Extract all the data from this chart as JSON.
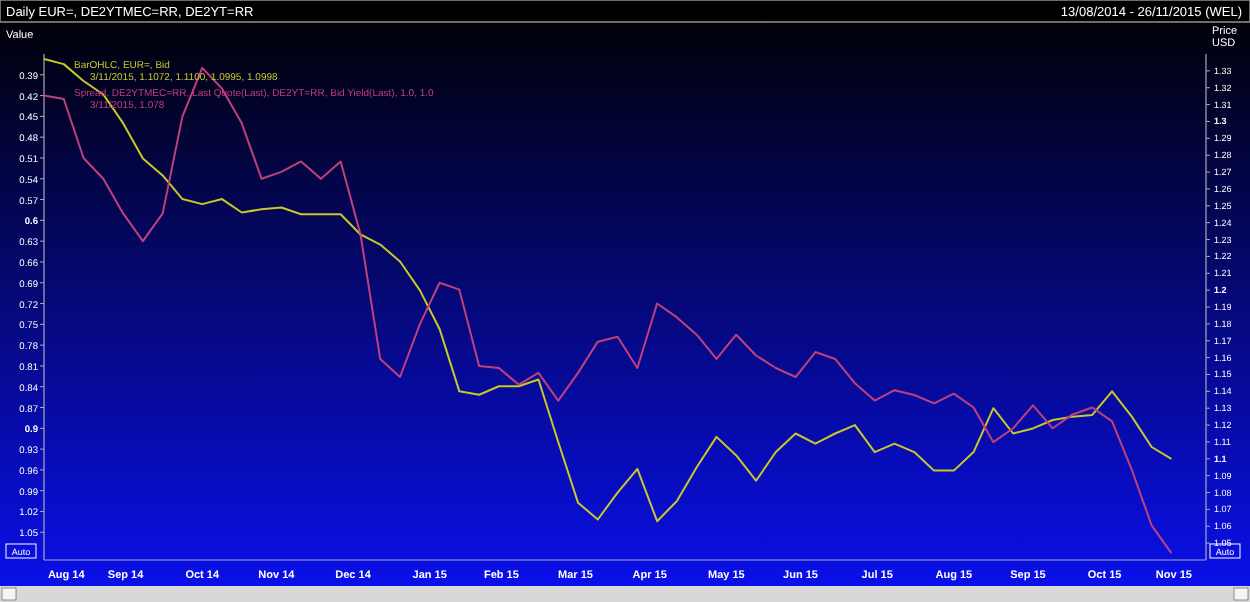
{
  "chart_data": {
    "type": "line",
    "title": "Daily EUR=, DE2YTMEC=RR, DE2YT=RR",
    "subtitle": "13/08/2014 - 26/11/2015 (WEL)",
    "ylabel": "Value",
    "y2label": "Price USD",
    "annotations": [
      "3/11/2015, 1.1072, 1.1100, 1.0995, 1.0998",
      "3/11/2015, 1.078",
      "Auto",
      "Auto"
    ],
    "x": [
      "2014-08-13",
      "2014-08-21",
      "2014-08-29",
      "2014-09-06",
      "2014-09-14",
      "2014-09-22",
      "2014-09-30",
      "2014-10-08",
      "2014-10-16",
      "2014-10-24",
      "2014-11-01",
      "2014-11-09",
      "2014-11-17",
      "2014-11-25",
      "2014-12-03",
      "2014-12-11",
      "2014-12-19",
      "2014-12-27",
      "2015-01-04",
      "2015-01-12",
      "2015-01-20",
      "2015-01-28",
      "2015-02-05",
      "2015-02-13",
      "2015-02-21",
      "2015-03-01",
      "2015-03-09",
      "2015-03-17",
      "2015-03-25",
      "2015-04-02",
      "2015-04-10",
      "2015-04-18",
      "2015-04-26",
      "2015-05-04",
      "2015-05-12",
      "2015-05-20",
      "2015-05-28",
      "2015-06-05",
      "2015-06-13",
      "2015-06-21",
      "2015-06-29",
      "2015-07-07",
      "2015-07-15",
      "2015-07-23",
      "2015-07-31",
      "2015-08-08",
      "2015-08-16",
      "2015-08-24",
      "2015-09-01",
      "2015-09-09",
      "2015-09-17",
      "2015-09-25",
      "2015-10-03",
      "2015-10-11",
      "2015-10-19",
      "2015-10-27",
      "2015-11-04",
      "2015-11-12"
    ],
    "series": [
      {
        "name": "BarOHLC, EUR=, Bid",
        "color": "#c8c828",
        "axis": "y2",
        "values": [
          1.337,
          1.334,
          1.324,
          1.316,
          1.299,
          1.278,
          1.268,
          1.254,
          1.251,
          1.254,
          1.246,
          1.248,
          1.249,
          1.245,
          1.245,
          1.245,
          1.233,
          1.227,
          1.217,
          1.2,
          1.177,
          1.14,
          1.138,
          1.143,
          1.143,
          1.147,
          1.11,
          1.074,
          1.064,
          1.08,
          1.094,
          1.063,
          1.075,
          1.095,
          1.113,
          1.102,
          1.087,
          1.104,
          1.115,
          1.109,
          1.115,
          1.12,
          1.104,
          1.109,
          1.104,
          1.093,
          1.093,
          1.104,
          1.13,
          1.115,
          1.118,
          1.123,
          1.125,
          1.126,
          1.14,
          1.125,
          1.107,
          1.1
        ]
      },
      {
        "name": "Spread, DE2YTMEC=RR, Last Quote(Last), DE2YT=RR, Bid Yield(Last), 1.0, 1.0",
        "color": "#c0407a",
        "values": [
          0.42,
          0.425,
          0.51,
          0.54,
          0.59,
          0.63,
          0.59,
          0.45,
          0.38,
          0.41,
          0.46,
          0.54,
          0.53,
          0.515,
          0.54,
          0.515,
          0.62,
          0.8,
          0.826,
          0.75,
          0.69,
          0.7,
          0.81,
          0.813,
          0.837,
          0.82,
          0.86,
          0.82,
          0.775,
          0.768,
          0.813,
          0.72,
          0.74,
          0.765,
          0.8,
          0.765,
          0.795,
          0.813,
          0.826,
          0.79,
          0.8,
          0.835,
          0.86,
          0.845,
          0.852,
          0.864,
          0.85,
          0.87,
          0.92,
          0.9,
          0.867,
          0.9,
          0.88,
          0.87,
          0.89,
          0.96,
          1.04,
          1.08
        ]
      }
    ],
    "xlim": [
      "2014-08-13",
      "2015-11-26"
    ],
    "xticks": [
      {
        "value": "2014-08-22",
        "label": "Aug 14"
      },
      {
        "value": "2014-09-15",
        "label": "Sep 14"
      },
      {
        "value": "2014-10-16",
        "label": "Oct 14"
      },
      {
        "value": "2014-11-15",
        "label": "Nov 14"
      },
      {
        "value": "2014-12-16",
        "label": "Dec 14"
      },
      {
        "value": "2015-01-16",
        "label": "Jan 15"
      },
      {
        "value": "2015-02-14",
        "label": "Feb 15"
      },
      {
        "value": "2015-03-16",
        "label": "Mar 15"
      },
      {
        "value": "2015-04-15",
        "label": "Apr 15"
      },
      {
        "value": "2015-05-16",
        "label": "May 15"
      },
      {
        "value": "2015-06-15",
        "label": "Jun 15"
      },
      {
        "value": "2015-07-16",
        "label": "Jul 15"
      },
      {
        "value": "2015-08-16",
        "label": "Aug 15"
      },
      {
        "value": "2015-09-15",
        "label": "Sep 15"
      },
      {
        "value": "2015-10-16",
        "label": "Oct 15"
      },
      {
        "value": "2015-11-13",
        "label": "Nov 15"
      }
    ],
    "ylim": [
      1.09,
      0.36
    ],
    "yticks": [
      0.39,
      0.42,
      0.45,
      0.48,
      0.51,
      0.54,
      0.57,
      0.6,
      0.63,
      0.66,
      0.69,
      0.72,
      0.75,
      0.78,
      0.81,
      0.84,
      0.87,
      0.9,
      0.93,
      0.96,
      0.99,
      1.02,
      1.05
    ],
    "y2lim": [
      1.04,
      1.34
    ],
    "y2ticks": [
      1.33,
      1.32,
      1.31,
      1.3,
      1.29,
      1.28,
      1.27,
      1.26,
      1.25,
      1.24,
      1.23,
      1.22,
      1.21,
      1.2,
      1.19,
      1.18,
      1.17,
      1.16,
      1.15,
      1.14,
      1.13,
      1.12,
      1.11,
      1.1,
      1.09,
      1.08,
      1.07,
      1.06,
      1.05
    ],
    "legend": "top left",
    "grid": false,
    "line_style": "solid",
    "marker": "none"
  }
}
